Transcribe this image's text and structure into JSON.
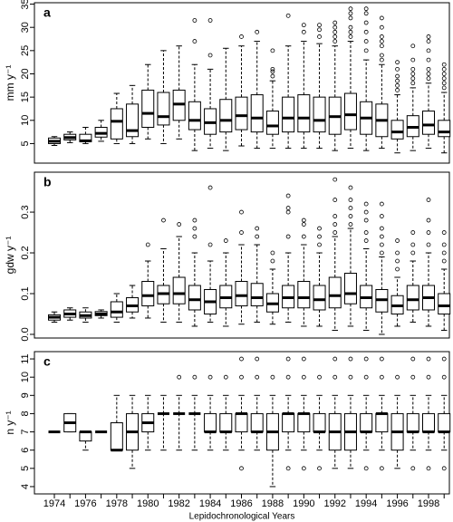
{
  "chart_data": [
    {
      "type": "box",
      "panel_label": "a",
      "ylabel": "mm y⁻¹",
      "color": "#000000",
      "ylim": [
        0.8,
        35.3
      ],
      "yticks": [
        5,
        10,
        15,
        20,
        25,
        30,
        35
      ],
      "whislo": [
        4.6,
        5.2,
        5.0,
        5.5,
        5.0,
        5.0,
        6.0,
        5.0,
        6.0,
        3.5,
        4.0,
        3.5,
        4.5,
        4.0,
        4.0,
        4.0,
        4.0,
        4.0,
        3.5,
        4.0,
        3.5,
        4.0,
        3.0,
        3.5,
        4.0,
        3.0
      ],
      "q1": [
        5.0,
        5.8,
        5.4,
        6.4,
        6.0,
        6.5,
        8.5,
        9.0,
        10.0,
        8.0,
        7.0,
        7.5,
        8.0,
        7.5,
        7.0,
        7.5,
        7.5,
        7.5,
        7.0,
        8.0,
        7.0,
        6.5,
        6.0,
        6.5,
        7.0,
        6.5
      ],
      "med": [
        5.5,
        6.3,
        5.6,
        7.2,
        9.8,
        7.8,
        11.5,
        10.8,
        13.5,
        10.0,
        9.5,
        10.0,
        11.0,
        10.5,
        8.8,
        10.5,
        10.5,
        10.0,
        10.8,
        11.2,
        10.5,
        10.0,
        7.5,
        8.5,
        9.0,
        7.5
      ],
      "q3": [
        6.2,
        7.0,
        7.0,
        8.5,
        12.5,
        13.5,
        16.5,
        16.0,
        16.5,
        14.0,
        12.5,
        14.5,
        15.0,
        15.5,
        12.0,
        15.0,
        15.5,
        15.0,
        15.0,
        15.8,
        14.0,
        13.5,
        10.0,
        11.0,
        12.0,
        10.0
      ],
      "whishi": [
        6.5,
        7.5,
        8.5,
        10.0,
        15.8,
        17.5,
        22.0,
        25.0,
        26.0,
        22.0,
        21.0,
        25.5,
        26.0,
        27.0,
        18.5,
        26.0,
        27.0,
        26.5,
        26.0,
        27.0,
        23.0,
        22.0,
        15.5,
        17.0,
        18.0,
        16.0
      ],
      "outliers": [
        [],
        [],
        [],
        [],
        [],
        [],
        [],
        [],
        [],
        [
          27,
          31.5
        ],
        [
          24,
          31.5
        ],
        [],
        [
          28
        ],
        [
          29
        ],
        [
          19.5,
          20.5,
          21,
          25
        ],
        [
          32.5
        ],
        [
          29,
          30.5
        ],
        [
          28,
          29.5,
          30.5
        ],
        [
          27,
          28,
          29,
          30,
          31
        ],
        [
          28,
          29,
          30,
          32,
          33,
          34
        ],
        [
          25,
          27,
          29,
          31,
          33,
          34
        ],
        [
          23,
          24,
          26,
          27,
          28,
          30,
          32
        ],
        [
          16.5,
          17.5,
          18.5,
          19.5,
          21,
          22.5
        ],
        [
          18,
          19,
          20,
          21,
          23,
          26
        ],
        [
          19,
          20,
          21,
          23,
          25,
          27,
          28
        ],
        [
          17,
          18,
          19,
          20,
          21,
          22
        ]
      ]
    },
    {
      "type": "box",
      "panel_label": "b",
      "ylabel": "gdw y⁻¹",
      "color": "#000000",
      "ylim": [
        -0.009,
        0.398
      ],
      "yticks": [
        {
          "value": 0,
          "label": "0.0"
        },
        0.1,
        0.2,
        0.3
      ],
      "whislo": [
        0.03,
        0.035,
        0.03,
        0.04,
        0.03,
        0.04,
        0.04,
        0.03,
        0.03,
        0.02,
        0.03,
        0.02,
        0.025,
        0.03,
        0.025,
        0.03,
        0.02,
        0.02,
        0.01,
        0.02,
        0.01,
        0.0,
        0.02,
        0.03,
        0.02,
        0.01
      ],
      "q1": [
        0.035,
        0.042,
        0.04,
        0.046,
        0.042,
        0.055,
        0.07,
        0.075,
        0.075,
        0.06,
        0.05,
        0.065,
        0.07,
        0.07,
        0.055,
        0.065,
        0.065,
        0.06,
        0.065,
        0.075,
        0.065,
        0.055,
        0.05,
        0.06,
        0.06,
        0.05
      ],
      "med": [
        0.042,
        0.05,
        0.046,
        0.05,
        0.055,
        0.07,
        0.095,
        0.1,
        0.1,
        0.085,
        0.08,
        0.09,
        0.095,
        0.09,
        0.075,
        0.09,
        0.09,
        0.085,
        0.095,
        0.1,
        0.09,
        0.085,
        0.07,
        0.085,
        0.09,
        0.07
      ],
      "q3": [
        0.048,
        0.06,
        0.055,
        0.056,
        0.08,
        0.09,
        0.13,
        0.12,
        0.14,
        0.12,
        0.11,
        0.12,
        0.13,
        0.125,
        0.1,
        0.12,
        0.13,
        0.12,
        0.14,
        0.15,
        0.12,
        0.11,
        0.095,
        0.12,
        0.12,
        0.1
      ],
      "whishi": [
        0.055,
        0.065,
        0.065,
        0.06,
        0.1,
        0.12,
        0.18,
        0.21,
        0.24,
        0.2,
        0.18,
        0.2,
        0.22,
        0.22,
        0.16,
        0.2,
        0.22,
        0.2,
        0.24,
        0.26,
        0.21,
        0.19,
        0.14,
        0.18,
        0.2,
        0.16
      ],
      "outliers": [
        [],
        [],
        [],
        [],
        [],
        [],
        [
          0.22
        ],
        [
          0.28
        ],
        [
          0.27
        ],
        [
          0.24,
          0.26,
          0.28
        ],
        [
          0.22,
          0.36
        ],
        [
          0.23
        ],
        [
          0.25,
          0.3
        ],
        [
          0.24,
          0.26
        ],
        [
          0.18,
          0.2
        ],
        [
          0.24,
          0.3,
          0.31,
          0.34
        ],
        [
          0.24,
          0.27,
          0.28
        ],
        [
          0.22,
          0.24,
          0.26
        ],
        [
          0.25,
          0.27,
          0.29,
          0.33,
          0.38
        ],
        [
          0.27,
          0.29,
          0.31,
          0.33,
          0.36
        ],
        [
          0.23,
          0.25,
          0.28,
          0.3,
          0.32
        ],
        [
          0.2,
          0.22,
          0.24,
          0.26,
          0.29,
          0.32
        ],
        [
          0.16,
          0.18,
          0.2,
          0.23
        ],
        [
          0.2,
          0.22,
          0.25
        ],
        [
          0.22,
          0.25,
          0.28,
          0.33
        ],
        [
          0.18,
          0.2,
          0.22,
          0.25
        ]
      ]
    },
    {
      "type": "box",
      "panel_label": "c",
      "ylabel": "n y⁻¹",
      "color": "#000000",
      "xlabel": "Lepidochronological Years",
      "categories": [
        "1974",
        null,
        "1976",
        null,
        "1978",
        null,
        "1980",
        null,
        "1982",
        null,
        "1984",
        null,
        "1986",
        null,
        "1988",
        null,
        "1990",
        null,
        "1992",
        null,
        "1994",
        null,
        "1996",
        null,
        "1998",
        null
      ],
      "ylim": [
        3.6,
        11.4
      ],
      "yticks": [
        4,
        5,
        6,
        7,
        8,
        9,
        10,
        11
      ],
      "whislo": [
        7,
        7,
        6,
        7,
        6,
        5,
        6,
        6,
        6,
        6,
        6,
        6,
        6,
        6,
        4,
        6,
        6,
        6,
        5,
        5,
        6,
        6,
        5,
        6,
        6,
        6
      ],
      "q1": [
        7,
        7,
        6.5,
        7,
        6,
        6,
        7,
        8,
        8,
        8,
        7,
        7,
        7,
        7,
        6,
        7,
        7,
        7,
        6,
        6,
        7,
        7,
        6,
        7,
        7,
        7
      ],
      "med": [
        7,
        7.5,
        7,
        7,
        6,
        7,
        7.5,
        8,
        8,
        8,
        7,
        7,
        8,
        7,
        7,
        8,
        8,
        7,
        7,
        7,
        7,
        8,
        7,
        7,
        7,
        7
      ],
      "q3": [
        7,
        8,
        7,
        7,
        7.5,
        8,
        8,
        8,
        8,
        8,
        8,
        8,
        8,
        8,
        8,
        8,
        8,
        8,
        8,
        8,
        8,
        8,
        8,
        8,
        8,
        8
      ],
      "whishi": [
        7,
        8,
        7,
        7,
        9,
        9,
        9,
        9,
        9,
        9,
        9,
        9,
        9,
        9,
        9,
        9,
        9,
        9,
        9,
        9,
        9,
        9,
        9,
        9,
        9,
        9
      ],
      "outliers": [
        [],
        [],
        [],
        [],
        [],
        [],
        [],
        [],
        [
          10
        ],
        [
          10
        ],
        [
          10
        ],
        [
          10
        ],
        [
          5,
          10,
          11
        ],
        [
          10,
          11
        ],
        [
          10
        ],
        [
          5,
          10,
          11
        ],
        [
          5,
          10,
          11
        ],
        [
          5,
          10
        ],
        [
          10,
          11
        ],
        [
          10,
          11
        ],
        [
          5,
          10,
          11
        ],
        [
          5,
          10,
          11
        ],
        [
          10
        ],
        [
          5,
          10,
          11
        ],
        [
          5,
          10,
          11
        ],
        [
          5,
          10,
          11
        ]
      ]
    }
  ]
}
